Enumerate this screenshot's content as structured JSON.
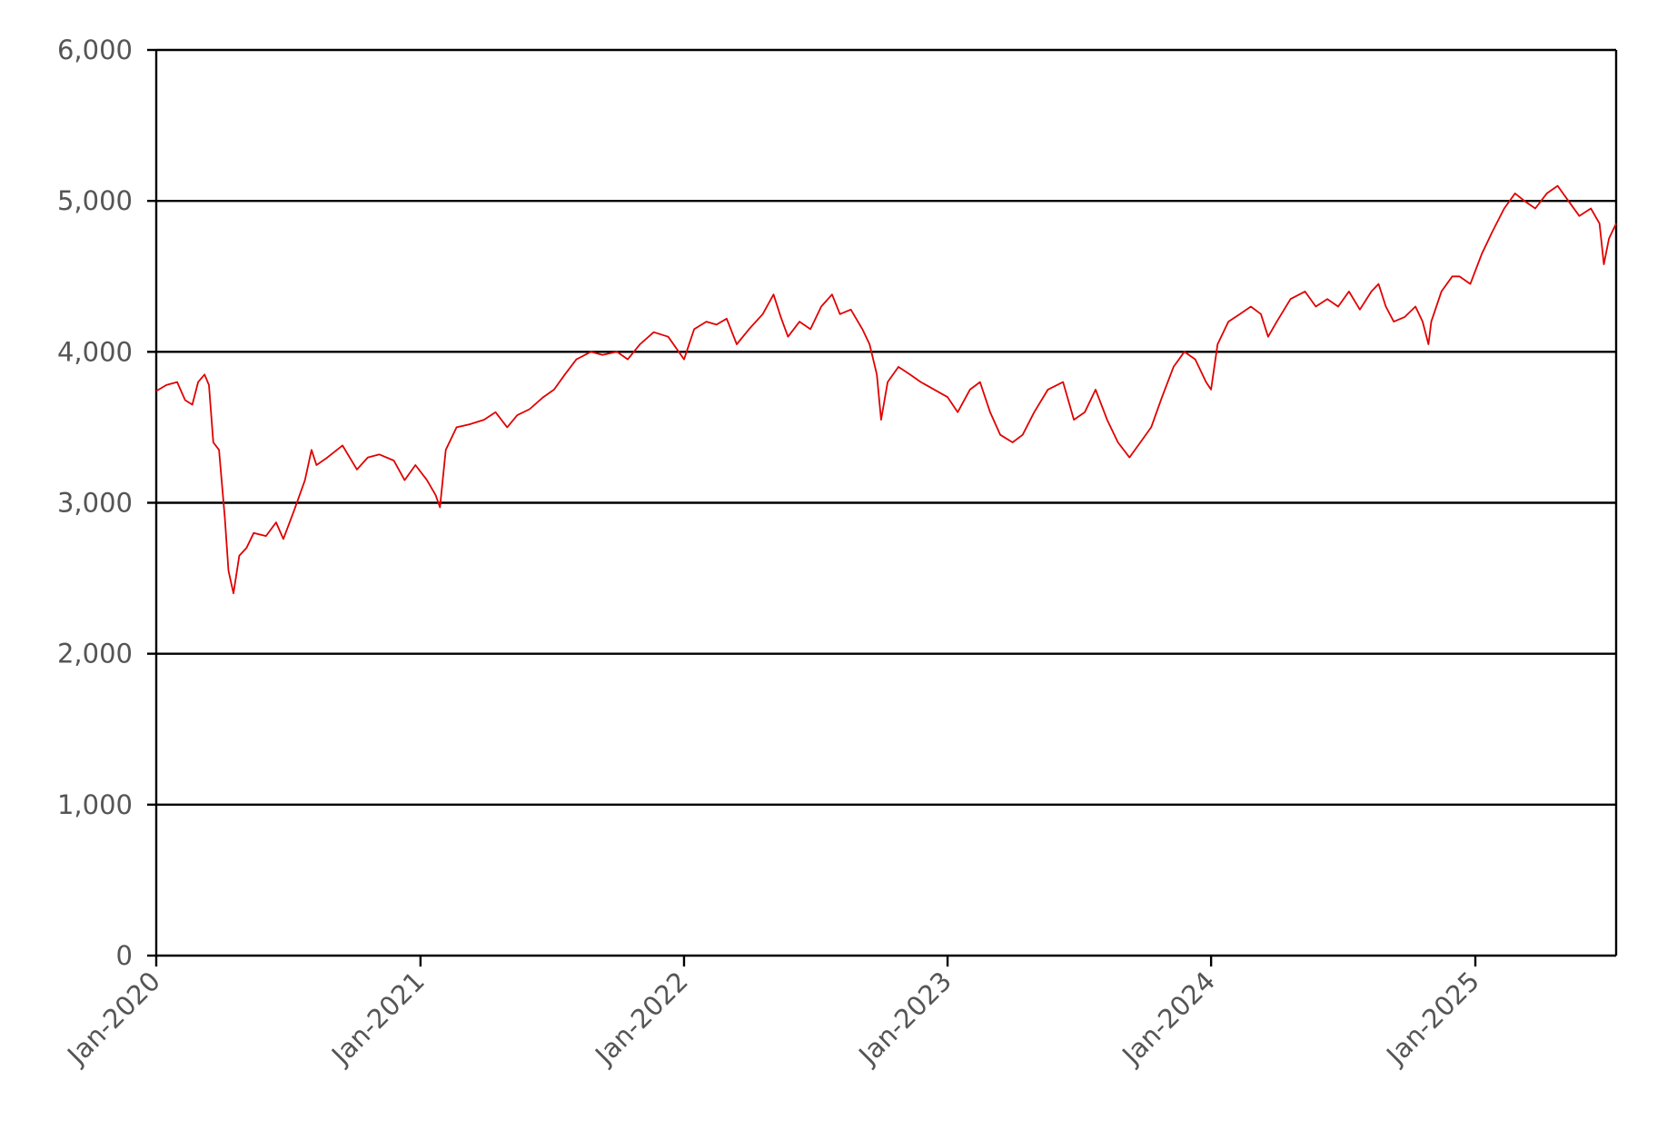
{
  "chart_data": {
    "type": "line",
    "title": "",
    "xlabel": "",
    "ylabel": "",
    "grid": true,
    "legend": "none",
    "xlim": [
      "2020-01-01",
      "2025-07-15"
    ],
    "ylim": [
      0,
      6000
    ],
    "y_ticks": [
      {
        "value": 0,
        "label": "0"
      },
      {
        "value": 1000,
        "label": "1,000"
      },
      {
        "value": 2000,
        "label": "2,000"
      },
      {
        "value": 3000,
        "label": "3,000"
      },
      {
        "value": 4000,
        "label": "4,000"
      },
      {
        "value": 5000,
        "label": "5,000"
      },
      {
        "value": 6000,
        "label": "6,000"
      }
    ],
    "x_ticks": [
      {
        "value": "2020-01-01",
        "label": "Jan-2020"
      },
      {
        "value": "2021-01-01",
        "label": "Jan-2021"
      },
      {
        "value": "2022-01-01",
        "label": "Jan-2022"
      },
      {
        "value": "2023-01-01",
        "label": "Jan-2023"
      },
      {
        "value": "2024-01-01",
        "label": "Jan-2024"
      },
      {
        "value": "2025-01-01",
        "label": "Jan-2025"
      }
    ],
    "series": [
      {
        "color": "#e00000",
        "points": [
          [
            "2020-01-01",
            3740
          ],
          [
            "2020-01-15",
            3780
          ],
          [
            "2020-01-30",
            3800
          ],
          [
            "2020-02-10",
            3680
          ],
          [
            "2020-02-20",
            3650
          ],
          [
            "2020-02-28",
            3800
          ],
          [
            "2020-03-08",
            3850
          ],
          [
            "2020-03-14",
            3780
          ],
          [
            "2020-03-20",
            3400
          ],
          [
            "2020-03-28",
            3350
          ],
          [
            "2020-04-05",
            2900
          ],
          [
            "2020-04-10",
            2550
          ],
          [
            "2020-04-17",
            2400
          ],
          [
            "2020-04-25",
            2650
          ],
          [
            "2020-05-05",
            2700
          ],
          [
            "2020-05-15",
            2800
          ],
          [
            "2020-06-01",
            2780
          ],
          [
            "2020-06-15",
            2870
          ],
          [
            "2020-06-25",
            2760
          ],
          [
            "2020-07-10",
            2950
          ],
          [
            "2020-07-25",
            3150
          ],
          [
            "2020-08-03",
            3350
          ],
          [
            "2020-08-10",
            3250
          ],
          [
            "2020-08-25",
            3300
          ],
          [
            "2020-09-15",
            3380
          ],
          [
            "2020-10-05",
            3220
          ],
          [
            "2020-10-20",
            3300
          ],
          [
            "2020-11-05",
            3320
          ],
          [
            "2020-11-25",
            3280
          ],
          [
            "2020-12-10",
            3150
          ],
          [
            "2020-12-25",
            3250
          ],
          [
            "2021-01-10",
            3150
          ],
          [
            "2021-01-22",
            3050
          ],
          [
            "2021-01-28",
            2970
          ],
          [
            "2021-02-05",
            3350
          ],
          [
            "2021-02-20",
            3500
          ],
          [
            "2021-03-10",
            3520
          ],
          [
            "2021-03-30",
            3550
          ],
          [
            "2021-04-15",
            3600
          ],
          [
            "2021-05-01",
            3500
          ],
          [
            "2021-05-15",
            3580
          ],
          [
            "2021-06-01",
            3620
          ],
          [
            "2021-06-20",
            3700
          ],
          [
            "2021-07-05",
            3750
          ],
          [
            "2021-07-20",
            3850
          ],
          [
            "2021-08-05",
            3950
          ],
          [
            "2021-08-25",
            4000
          ],
          [
            "2021-09-10",
            3980
          ],
          [
            "2021-09-30",
            4000
          ],
          [
            "2021-10-15",
            3950
          ],
          [
            "2021-11-01",
            4050
          ],
          [
            "2021-11-20",
            4130
          ],
          [
            "2021-12-10",
            4100
          ],
          [
            "2022-01-01",
            3950
          ],
          [
            "2022-01-15",
            4150
          ],
          [
            "2022-02-01",
            4200
          ],
          [
            "2022-02-15",
            4180
          ],
          [
            "2022-03-01",
            4220
          ],
          [
            "2022-03-15",
            4050
          ],
          [
            "2022-04-01",
            4150
          ],
          [
            "2022-04-20",
            4250
          ],
          [
            "2022-05-05",
            4380
          ],
          [
            "2022-05-15",
            4230
          ],
          [
            "2022-05-25",
            4100
          ],
          [
            "2022-06-10",
            4200
          ],
          [
            "2022-06-25",
            4150
          ],
          [
            "2022-07-10",
            4300
          ],
          [
            "2022-07-25",
            4380
          ],
          [
            "2022-08-05",
            4250
          ],
          [
            "2022-08-20",
            4280
          ],
          [
            "2022-09-05",
            4150
          ],
          [
            "2022-09-15",
            4050
          ],
          [
            "2022-09-25",
            3850
          ],
          [
            "2022-10-01",
            3550
          ],
          [
            "2022-10-10",
            3800
          ],
          [
            "2022-10-25",
            3900
          ],
          [
            "2022-11-10",
            3850
          ],
          [
            "2022-11-25",
            3800
          ],
          [
            "2023-01-01",
            3700
          ],
          [
            "2023-01-15",
            3600
          ],
          [
            "2023-02-01",
            3750
          ],
          [
            "2023-02-15",
            3800
          ],
          [
            "2023-03-01",
            3600
          ],
          [
            "2023-03-15",
            3450
          ],
          [
            "2023-04-01",
            3400
          ],
          [
            "2023-04-15",
            3450
          ],
          [
            "2023-05-01",
            3600
          ],
          [
            "2023-05-20",
            3750
          ],
          [
            "2023-06-10",
            3800
          ],
          [
            "2023-06-25",
            3550
          ],
          [
            "2023-07-10",
            3600
          ],
          [
            "2023-07-25",
            3750
          ],
          [
            "2023-08-10",
            3550
          ],
          [
            "2023-08-25",
            3400
          ],
          [
            "2023-09-10",
            3300
          ],
          [
            "2023-09-25",
            3400
          ],
          [
            "2023-10-10",
            3500
          ],
          [
            "2023-10-25",
            3700
          ],
          [
            "2023-11-10",
            3900
          ],
          [
            "2023-11-25",
            4000
          ],
          [
            "2023-12-10",
            3950
          ],
          [
            "2023-12-25",
            3800
          ],
          [
            "2024-01-01",
            3750
          ],
          [
            "2024-01-10",
            4050
          ],
          [
            "2024-01-25",
            4200
          ],
          [
            "2024-02-10",
            4250
          ],
          [
            "2024-02-25",
            4300
          ],
          [
            "2024-03-10",
            4250
          ],
          [
            "2024-03-20",
            4100
          ],
          [
            "2024-04-01",
            4200
          ],
          [
            "2024-04-20",
            4350
          ],
          [
            "2024-05-10",
            4400
          ],
          [
            "2024-05-25",
            4300
          ],
          [
            "2024-06-10",
            4350
          ],
          [
            "2024-06-25",
            4300
          ],
          [
            "2024-07-10",
            4400
          ],
          [
            "2024-07-25",
            4280
          ],
          [
            "2024-08-10",
            4400
          ],
          [
            "2024-08-20",
            4450
          ],
          [
            "2024-08-30",
            4300
          ],
          [
            "2024-09-10",
            4200
          ],
          [
            "2024-09-25",
            4230
          ],
          [
            "2024-10-10",
            4300
          ],
          [
            "2024-10-20",
            4200
          ],
          [
            "2024-10-28",
            4050
          ],
          [
            "2024-11-01",
            4200
          ],
          [
            "2024-11-15",
            4400
          ],
          [
            "2024-11-30",
            4500
          ],
          [
            "2024-12-10",
            4500
          ],
          [
            "2024-12-25",
            4450
          ],
          [
            "2025-01-10",
            4650
          ],
          [
            "2025-01-25",
            4800
          ],
          [
            "2025-02-10",
            4950
          ],
          [
            "2025-02-25",
            5050
          ],
          [
            "2025-03-10",
            5000
          ],
          [
            "2025-03-25",
            4950
          ],
          [
            "2025-04-10",
            5050
          ],
          [
            "2025-04-25",
            5100
          ],
          [
            "2025-05-10",
            5000
          ],
          [
            "2025-05-25",
            4900
          ],
          [
            "2025-06-10",
            4950
          ],
          [
            "2025-06-22",
            4850
          ],
          [
            "2025-06-28",
            4580
          ],
          [
            "2025-07-05",
            4750
          ],
          [
            "2025-07-15",
            4850
          ]
        ]
      }
    ]
  }
}
